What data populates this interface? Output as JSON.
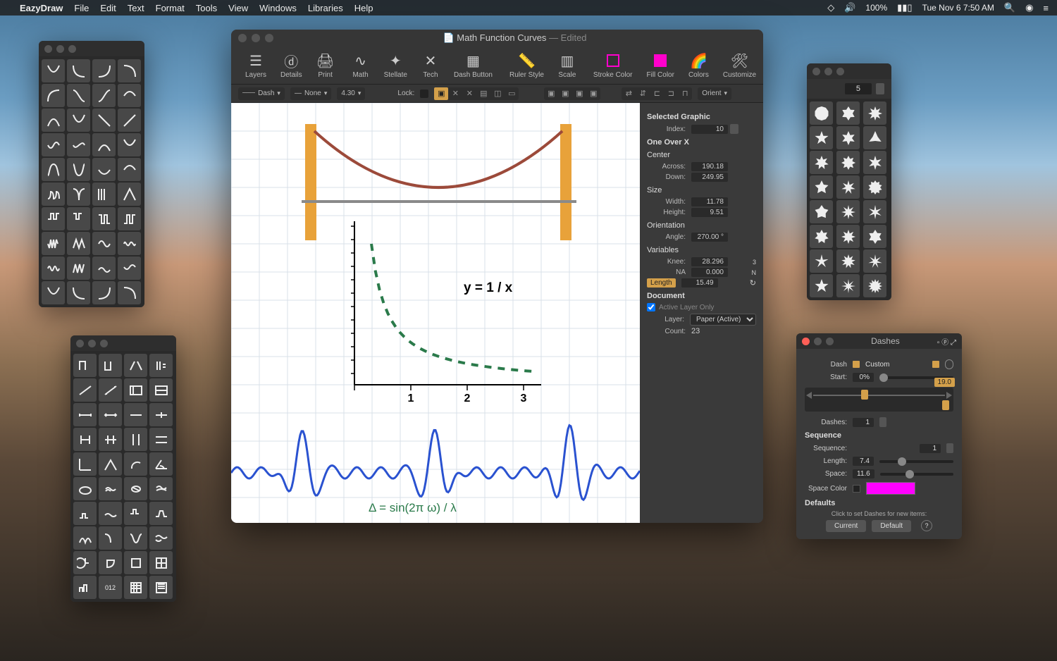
{
  "menubar": {
    "app": "EazyDraw",
    "items": [
      "File",
      "Edit",
      "Text",
      "Format",
      "Tools",
      "View",
      "Windows",
      "Libraries",
      "Help"
    ],
    "battery": "100%",
    "datetime": "Tue Nov 6  7:50 AM"
  },
  "doc": {
    "title": "Math  Function Curves",
    "edited": "— Edited",
    "toolbar": {
      "layers": "Layers",
      "details": "Details",
      "print": "Print",
      "math": "Math",
      "stellate": "Stellate",
      "tech": "Tech",
      "dash": "Dash Button",
      "ruler": "Ruler Style",
      "scale": "Scale",
      "stroke": "Stroke Color",
      "fill": "Fill Color",
      "colors": "Colors",
      "customize": "Customize"
    },
    "optbar": {
      "dash": "Dash",
      "none": "None",
      "thickness": "4.30",
      "lock": "Lock:",
      "orient": "Orient"
    },
    "canvas": {
      "grid_color": "#d8e0e8",
      "bg": "#ffffff",
      "pillar_color": "#e8a23a",
      "cable_color": "#9c4a3a",
      "deck_color": "#8a8a8a",
      "curve1_color": "#2a7a4a",
      "curve1_formula": "y = 1 / x",
      "axis_color": "#000000",
      "xticks": [
        "1",
        "2",
        "3"
      ],
      "wave_color": "#2a52d0",
      "wave_formula": "Δ = sin(2π ω) / λ",
      "wave_formula_color": "#2a7a4a"
    }
  },
  "inspector": {
    "selected": "Selected Graphic",
    "index_label": "Index:",
    "index": "10",
    "sec1": "One Over X",
    "center": "Center",
    "across_label": "Across:",
    "across": "190.18",
    "down_label": "Down:",
    "down": "249.95",
    "size": "Size",
    "width_label": "Width:",
    "width": "11.78",
    "height_label": "Height:",
    "height": "9.51",
    "orientation": "Orientation",
    "angle_label": "Angle:",
    "angle": "270.00 °",
    "variables": "Variables",
    "knee_label": "Knee:",
    "knee": "28.296",
    "na_label": "NA",
    "na": "0.000",
    "var_extra1": "3",
    "var_extra2": "N",
    "length_label": "Length",
    "length": "15.49",
    "document": "Document",
    "active_layer": "Active Layer Only",
    "layer_label": "Layer:",
    "layer": "Paper (Active)",
    "count_label": "Count:",
    "count": "23"
  },
  "stellate": {
    "value": "5"
  },
  "dashes": {
    "title": "Dashes",
    "dash_label": "Dash",
    "dash_mode": "Custom",
    "start_label": "Start:",
    "start": "0%",
    "marker_val": "19.0",
    "dashes_label": "Dashes:",
    "dashes_count": "1",
    "sequence": "Sequence",
    "seq_label": "Sequence:",
    "seq": "1",
    "length_label": "Length:",
    "length": "7.4",
    "space_label": "Space:",
    "space": "11.6",
    "space_color_label": "Space Color",
    "space_color": "#ff00ff",
    "defaults": "Defaults",
    "defaults_hint": "Click to set Dashes for new items:",
    "current": "Current",
    "default": "Default"
  }
}
